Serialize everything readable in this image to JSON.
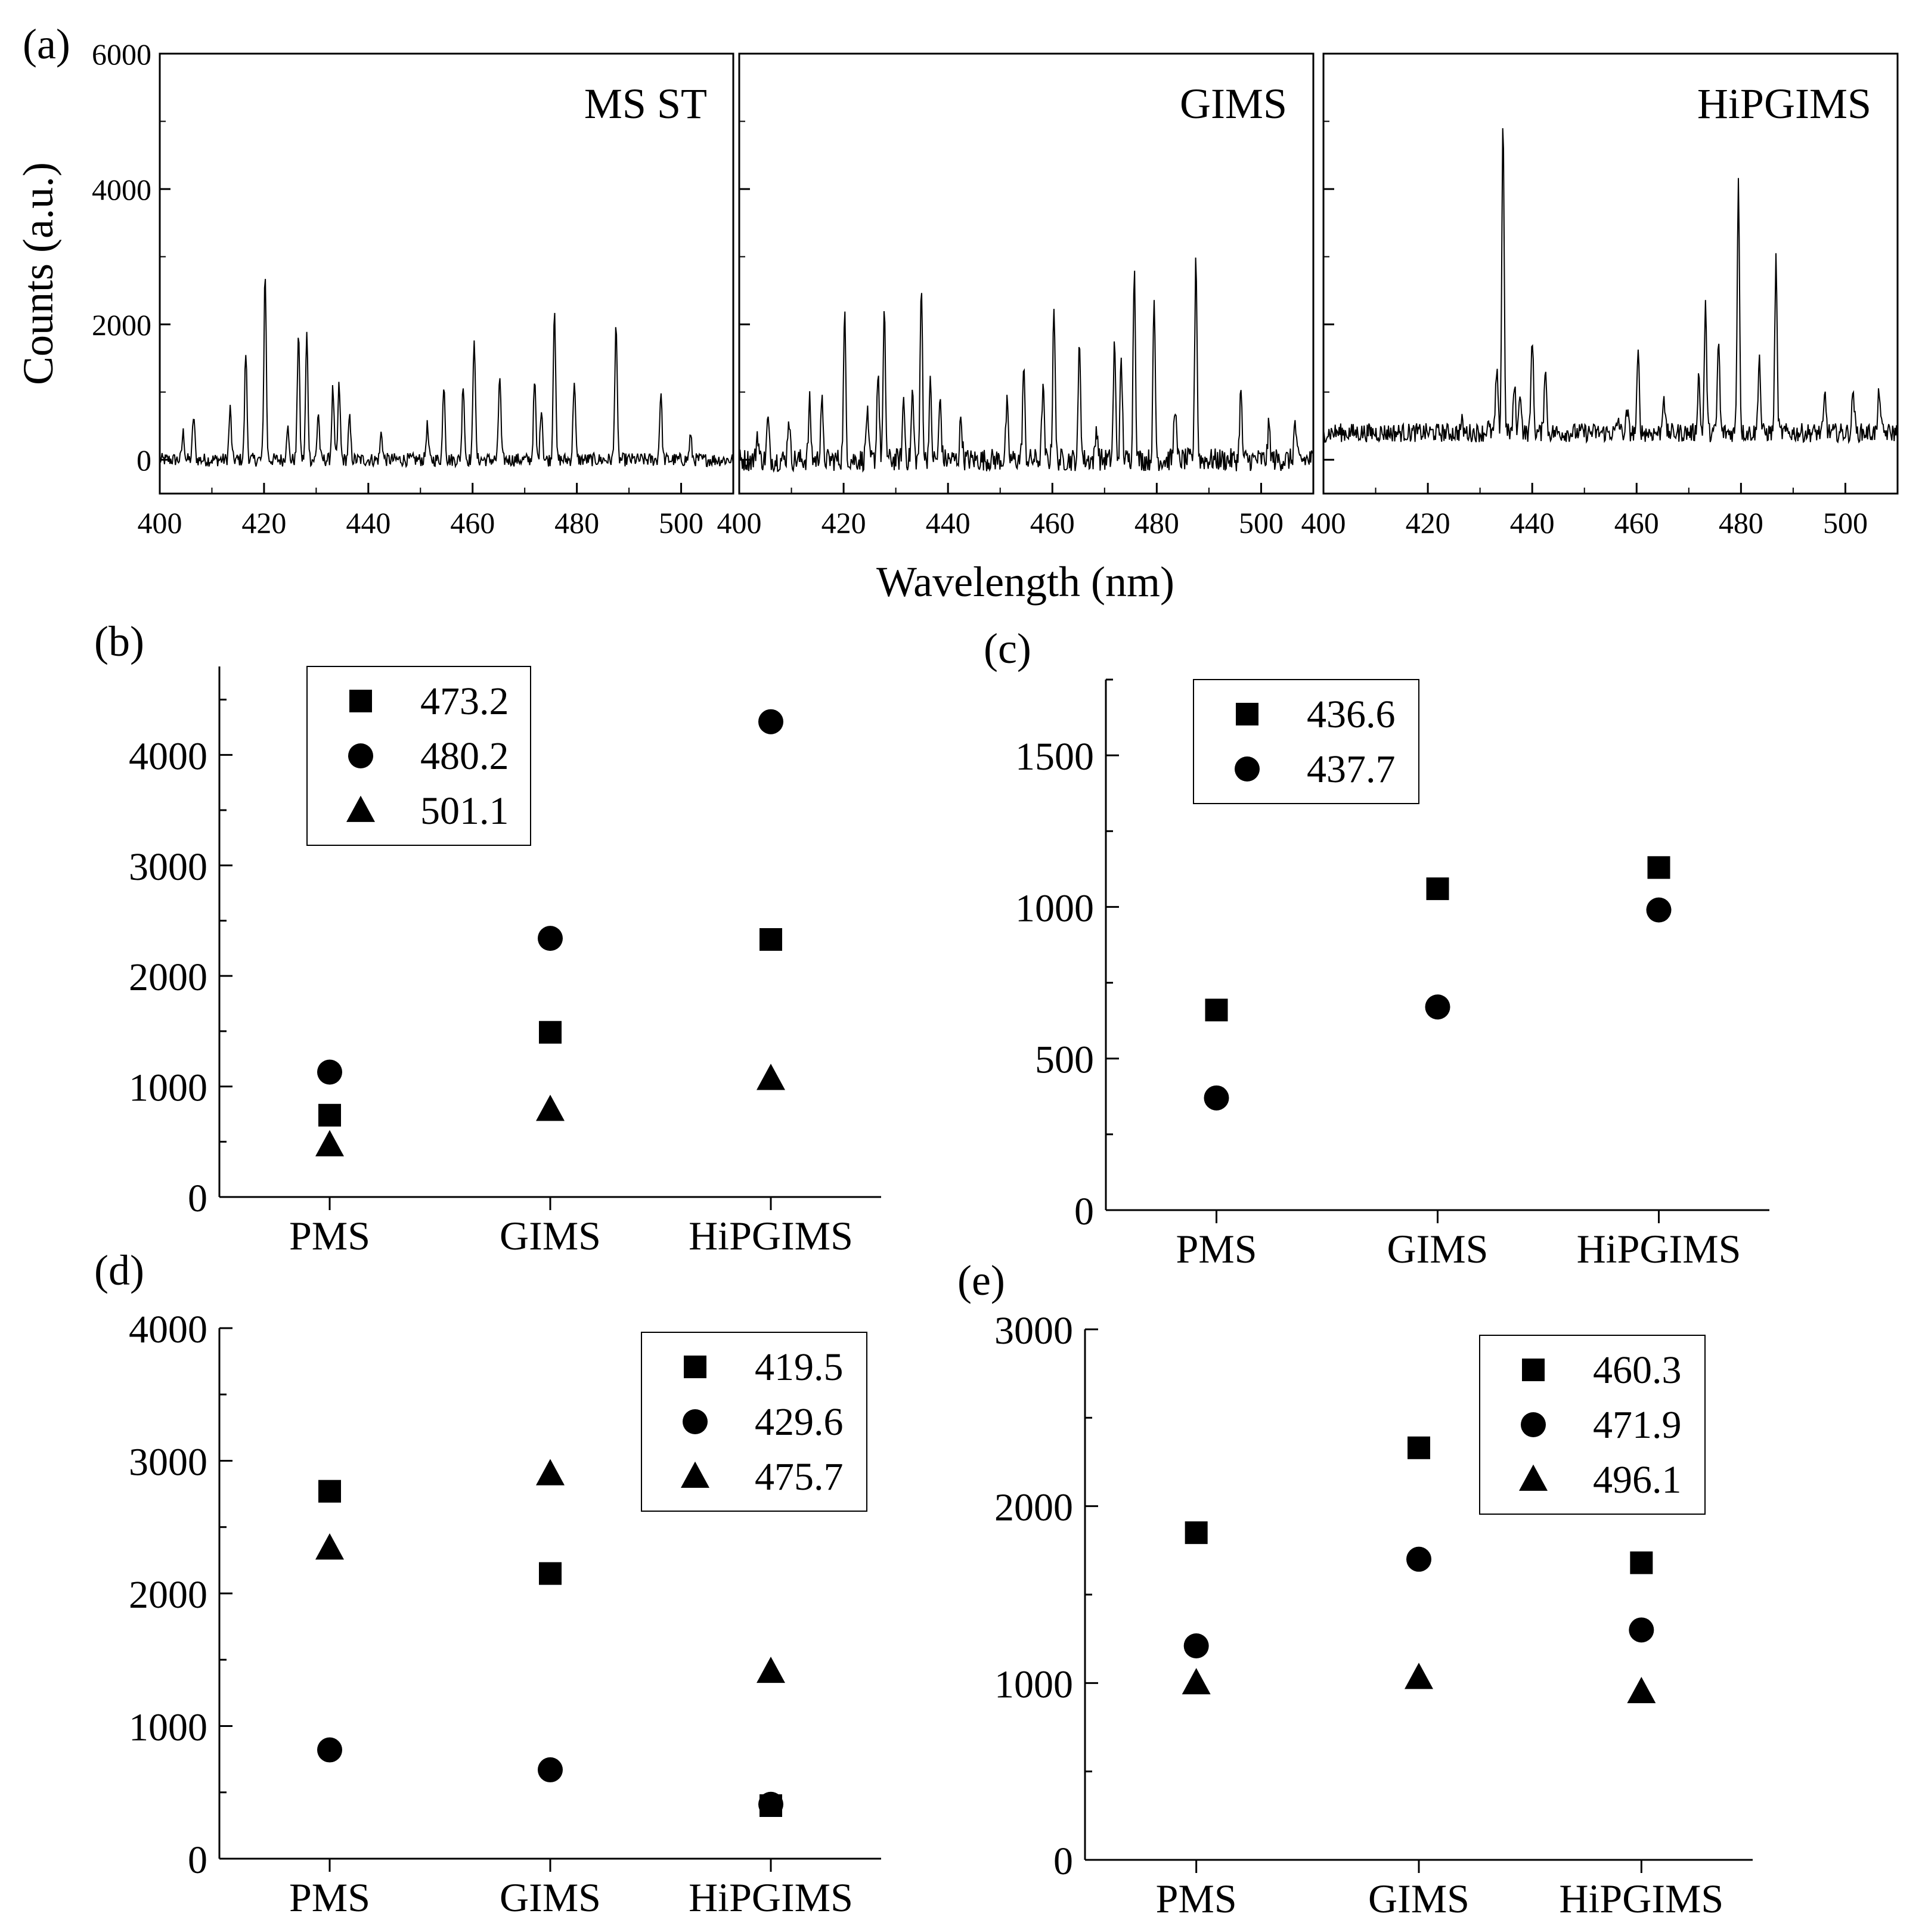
{
  "figure": {
    "xlabel_shared": "Wavelength (nm)"
  },
  "chart_data": [
    {
      "id": "a",
      "panel_label": "(a)",
      "type": "line",
      "ylabel": "Counts (a.u.)",
      "ylim": [
        -500,
        6000
      ],
      "yticks": [
        0,
        2000,
        4000,
        6000
      ],
      "xticks": [
        400,
        420,
        440,
        460,
        480,
        500
      ],
      "subpanels": [
        {
          "name": "MS ST",
          "xlim": [
            400,
            510
          ],
          "baseline": 0,
          "noise": 100,
          "peaks": [
            {
              "x": 404.5,
              "y": 400
            },
            {
              "x": 406.5,
              "y": 650
            },
            {
              "x": 413.5,
              "y": 750
            },
            {
              "x": 416.5,
              "y": 1600
            },
            {
              "x": 420.2,
              "y": 2800
            },
            {
              "x": 424.5,
              "y": 500
            },
            {
              "x": 426.6,
              "y": 1900
            },
            {
              "x": 428.2,
              "y": 1850
            },
            {
              "x": 430.4,
              "y": 700
            },
            {
              "x": 433.2,
              "y": 1050
            },
            {
              "x": 434.4,
              "y": 1100
            },
            {
              "x": 436.4,
              "y": 600
            },
            {
              "x": 442.5,
              "y": 400
            },
            {
              "x": 451.3,
              "y": 500
            },
            {
              "x": 454.5,
              "y": 1150
            },
            {
              "x": 458.2,
              "y": 1150
            },
            {
              "x": 460.3,
              "y": 1850
            },
            {
              "x": 465.2,
              "y": 1250
            },
            {
              "x": 471.9,
              "y": 1150
            },
            {
              "x": 473.2,
              "y": 800
            },
            {
              "x": 475.7,
              "y": 2300
            },
            {
              "x": 479.5,
              "y": 1200
            },
            {
              "x": 487.5,
              "y": 2050
            },
            {
              "x": 496.1,
              "y": 1000
            },
            {
              "x": 501.8,
              "y": 350
            }
          ]
        },
        {
          "name": "GIMS",
          "xlim": [
            400,
            510
          ],
          "baseline": 0,
          "noise": 170,
          "peaks": [
            {
              "x": 403.5,
              "y": 400
            },
            {
              "x": 405.5,
              "y": 600
            },
            {
              "x": 409.5,
              "y": 650
            },
            {
              "x": 413.5,
              "y": 850
            },
            {
              "x": 415.8,
              "y": 900
            },
            {
              "x": 420.2,
              "y": 2100
            },
            {
              "x": 424.5,
              "y": 700
            },
            {
              "x": 426.6,
              "y": 1350
            },
            {
              "x": 427.8,
              "y": 2100
            },
            {
              "x": 431.5,
              "y": 900
            },
            {
              "x": 433.2,
              "y": 1000
            },
            {
              "x": 434.9,
              "y": 2550
            },
            {
              "x": 436.6,
              "y": 1100
            },
            {
              "x": 438.5,
              "y": 900
            },
            {
              "x": 442.5,
              "y": 650
            },
            {
              "x": 451.3,
              "y": 800
            },
            {
              "x": 454.5,
              "y": 1350
            },
            {
              "x": 458.2,
              "y": 1100
            },
            {
              "x": 460.3,
              "y": 2350
            },
            {
              "x": 465.2,
              "y": 1750
            },
            {
              "x": 468.5,
              "y": 500
            },
            {
              "x": 471.9,
              "y": 1700
            },
            {
              "x": 473.2,
              "y": 1450
            },
            {
              "x": 475.7,
              "y": 2850
            },
            {
              "x": 479.5,
              "y": 2300
            },
            {
              "x": 483.5,
              "y": 850
            },
            {
              "x": 487.5,
              "y": 3050
            },
            {
              "x": 496.1,
              "y": 1000
            },
            {
              "x": 501.5,
              "y": 500
            },
            {
              "x": 506.5,
              "y": 550
            }
          ]
        },
        {
          "name": "HiPGIMS",
          "xlim": [
            400,
            510
          ],
          "baseline": 400,
          "noise": 140,
          "peaks": [
            {
              "x": 426.5,
              "y": 550
            },
            {
              "x": 431.5,
              "y": 500
            },
            {
              "x": 433.2,
              "y": 1300
            },
            {
              "x": 434.4,
              "y": 5050
            },
            {
              "x": 436.6,
              "y": 1100
            },
            {
              "x": 437.7,
              "y": 1050
            },
            {
              "x": 440.0,
              "y": 1850
            },
            {
              "x": 442.5,
              "y": 1400
            },
            {
              "x": 456.5,
              "y": 600
            },
            {
              "x": 458.2,
              "y": 700
            },
            {
              "x": 460.3,
              "y": 1550
            },
            {
              "x": 465.2,
              "y": 1000
            },
            {
              "x": 471.9,
              "y": 1250
            },
            {
              "x": 473.2,
              "y": 2250
            },
            {
              "x": 475.7,
              "y": 1750
            },
            {
              "x": 479.5,
              "y": 4150
            },
            {
              "x": 483.5,
              "y": 1550
            },
            {
              "x": 486.7,
              "y": 2950
            },
            {
              "x": 496.1,
              "y": 950
            },
            {
              "x": 501.5,
              "y": 1050
            },
            {
              "x": 506.5,
              "y": 1050
            }
          ]
        }
      ]
    },
    {
      "id": "b",
      "panel_label": "(b)",
      "type": "scatter",
      "categories": [
        "PMS",
        "GIMS",
        "HiPGIMS"
      ],
      "ylim": [
        0,
        4800
      ],
      "yticks": [
        0,
        1000,
        2000,
        3000,
        4000
      ],
      "series": [
        {
          "name": "473.2",
          "marker": "square",
          "values": [
            740,
            1490,
            2330
          ]
        },
        {
          "name": "480.2",
          "marker": "circle",
          "values": [
            1130,
            2340,
            4300
          ]
        },
        {
          "name": "501.1",
          "marker": "triangle",
          "values": [
            470,
            790,
            1070
          ]
        }
      ]
    },
    {
      "id": "c",
      "panel_label": "(c)",
      "type": "scatter",
      "categories": [
        "PMS",
        "GIMS",
        "HiPGIMS"
      ],
      "ylim": [
        0,
        1750
      ],
      "yticks": [
        0,
        500,
        1000,
        1500
      ],
      "series": [
        {
          "name": "436.6",
          "marker": "square",
          "values": [
            660,
            1060,
            1130
          ]
        },
        {
          "name": "437.7",
          "marker": "circle",
          "values": [
            370,
            670,
            990
          ]
        }
      ]
    },
    {
      "id": "d",
      "panel_label": "(d)",
      "type": "scatter",
      "categories": [
        "PMS",
        "GIMS",
        "HiPGIMS"
      ],
      "ylim": [
        0,
        4000
      ],
      "yticks": [
        0,
        1000,
        2000,
        3000,
        4000
      ],
      "series": [
        {
          "name": "419.5",
          "marker": "square",
          "values": [
            2770,
            2150,
            400
          ]
        },
        {
          "name": "429.6",
          "marker": "circle",
          "values": [
            820,
            670,
            410
          ]
        },
        {
          "name": "475.7",
          "marker": "triangle",
          "values": [
            2340,
            2900,
            1410
          ]
        }
      ]
    },
    {
      "id": "e",
      "panel_label": "(e)",
      "type": "scatter",
      "categories": [
        "PMS",
        "GIMS",
        "HiPGIMS"
      ],
      "ylim": [
        0,
        3000
      ],
      "yticks": [
        0,
        1000,
        2000,
        3000
      ],
      "series": [
        {
          "name": "460.3",
          "marker": "square",
          "values": [
            1850,
            2330,
            1680
          ]
        },
        {
          "name": "471.9",
          "marker": "circle",
          "values": [
            1210,
            1700,
            1300
          ]
        },
        {
          "name": "496.1",
          "marker": "triangle",
          "values": [
            1000,
            1030,
            950
          ]
        }
      ]
    }
  ]
}
